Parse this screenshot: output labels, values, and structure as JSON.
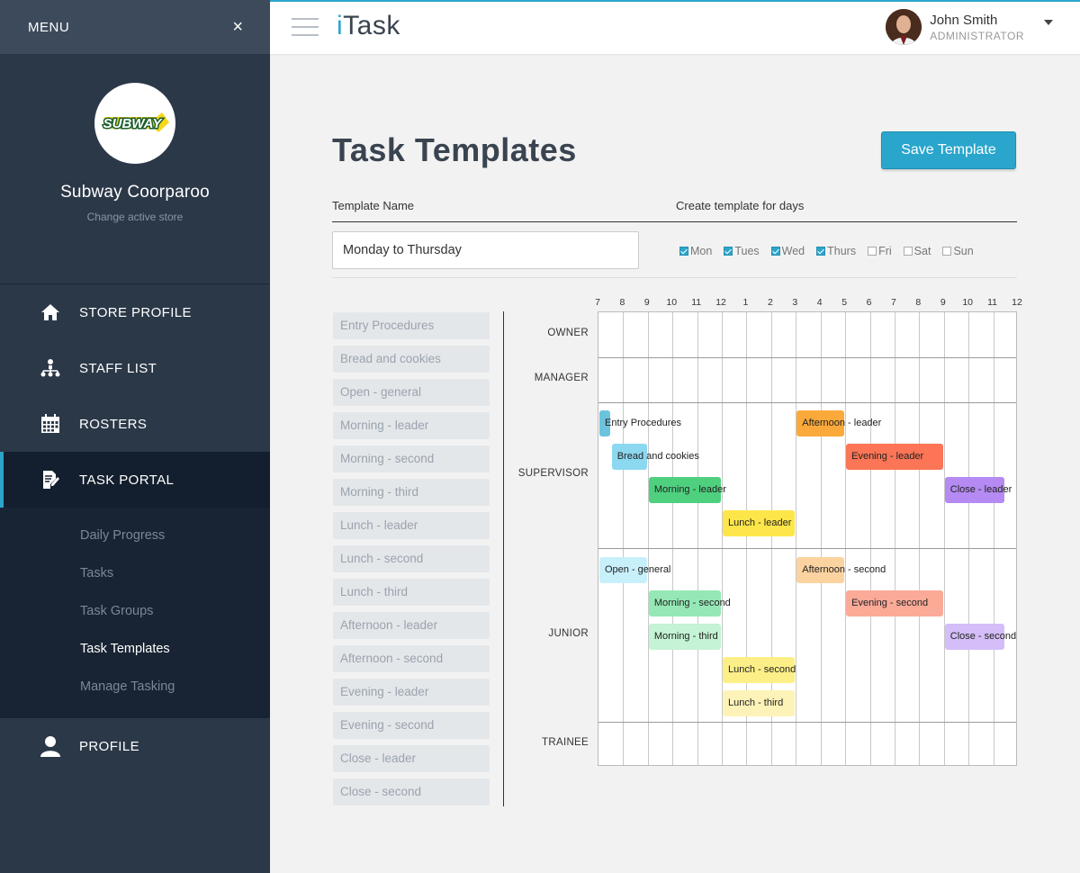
{
  "sidebar": {
    "menu_label": "MENU",
    "close_symbol": "×",
    "store_name": "Subway Coorparoo",
    "store_change": "Change active store",
    "logo_text": "SUBWAY",
    "nav": [
      {
        "label": "STORE PROFILE",
        "icon": "home-icon"
      },
      {
        "label": "STAFF LIST",
        "icon": "org-chart-icon"
      },
      {
        "label": "ROSTERS",
        "icon": "calendar-icon"
      },
      {
        "label": "TASK PORTAL",
        "icon": "task-edit-icon"
      },
      {
        "label": "PROFILE",
        "icon": "user-icon"
      }
    ],
    "subnav": [
      "Daily Progress",
      "Tasks",
      "Task Groups",
      "Task Templates",
      "Manage Tasking"
    ]
  },
  "topbar": {
    "brand_i": "i",
    "brand_rest": "Task",
    "user_name": "John Smith",
    "user_role": "ADMINISTRATOR"
  },
  "page": {
    "title": "Task Templates",
    "save_label": "Save Template",
    "template_name_label": "Template Name",
    "template_name_value": "Monday to Thursday",
    "days_label": "Create template for days",
    "days": [
      {
        "label": "Mon",
        "checked": true
      },
      {
        "label": "Tues",
        "checked": true
      },
      {
        "label": "Wed",
        "checked": true
      },
      {
        "label": "Thurs",
        "checked": true
      },
      {
        "label": "Fri",
        "checked": false
      },
      {
        "label": "Sat",
        "checked": false
      },
      {
        "label": "Sun",
        "checked": false
      }
    ]
  },
  "tasks": [
    "Entry Procedures",
    "Bread and cookies",
    "Open - general",
    "Morning - leader",
    "Morning - second",
    "Morning - third",
    "Lunch - leader",
    "Lunch - second",
    "Lunch - third",
    "Afternoon - leader",
    "Afternoon - second",
    "Evening - leader",
    "Evening - second",
    "Close - leader",
    "Close - second"
  ],
  "schedule": {
    "hours": [
      "7",
      "8",
      "9",
      "10",
      "11",
      "12",
      "1",
      "2",
      "3",
      "4",
      "5",
      "6",
      "7",
      "8",
      "9",
      "10",
      "11",
      "12"
    ],
    "roles": [
      "OWNER",
      "MANAGER",
      "SUPERVISOR",
      "JUNIOR",
      "TRAINEE"
    ],
    "blocks": [
      {
        "label": "Entry Procedures",
        "start": 7.0,
        "end": 7.5,
        "role": "SUPERVISOR",
        "lane": 0,
        "color": "#6cc3dd"
      },
      {
        "label": "Bread and cookies",
        "start": 7.5,
        "end": 9.0,
        "role": "SUPERVISOR",
        "lane": 1,
        "color": "#8cd8f0"
      },
      {
        "label": "Morning - leader",
        "start": 9.0,
        "end": 12.0,
        "role": "SUPERVISOR",
        "lane": 2,
        "color": "#4fd07f"
      },
      {
        "label": "Lunch - leader",
        "start": 12.0,
        "end": 15.0,
        "role": "SUPERVISOR",
        "lane": 3,
        "color": "#fde64a"
      },
      {
        "label": "Afternoon - leader",
        "start": 15.0,
        "end": 17.0,
        "role": "SUPERVISOR",
        "lane": 0,
        "color": "#fba93a"
      },
      {
        "label": "Evening - leader",
        "start": 17.0,
        "end": 21.0,
        "role": "SUPERVISOR",
        "lane": 1,
        "color": "#fb7556"
      },
      {
        "label": "Close - leader",
        "start": 21.0,
        "end": 23.5,
        "role": "SUPERVISOR",
        "lane": 2,
        "color": "#b58af2"
      },
      {
        "label": "Open - general",
        "start": 7.0,
        "end": 9.0,
        "role": "JUNIOR",
        "lane": 0,
        "color": "#c8f0fb"
      },
      {
        "label": "Morning - second",
        "start": 9.0,
        "end": 12.0,
        "role": "JUNIOR",
        "lane": 1,
        "color": "#95e8b5"
      },
      {
        "label": "Morning - third",
        "start": 9.0,
        "end": 12.0,
        "role": "JUNIOR",
        "lane": 2,
        "color": "#c4f3d5"
      },
      {
        "label": "Lunch - second",
        "start": 12.0,
        "end": 15.0,
        "role": "JUNIOR",
        "lane": 3,
        "color": "#fdef88"
      },
      {
        "label": "Lunch - third",
        "start": 12.0,
        "end": 15.0,
        "role": "JUNIOR",
        "lane": 4,
        "color": "#fdf3b8"
      },
      {
        "label": "Afternoon - second",
        "start": 15.0,
        "end": 17.0,
        "role": "JUNIOR",
        "lane": 0,
        "color": "#fbd3a0"
      },
      {
        "label": "Evening - second",
        "start": 17.0,
        "end": 21.0,
        "role": "JUNIOR",
        "lane": 1,
        "color": "#fbaa98"
      },
      {
        "label": "Close - second",
        "start": 21.0,
        "end": 23.5,
        "role": "JUNIOR",
        "lane": 2,
        "color": "#d4bdf8"
      }
    ]
  }
}
